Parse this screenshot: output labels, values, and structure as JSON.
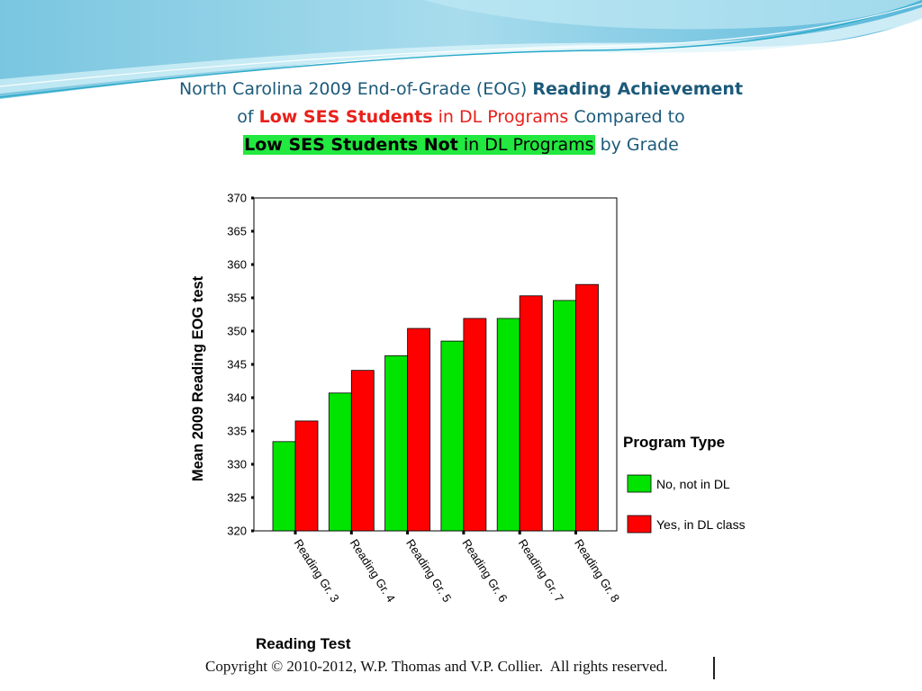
{
  "title": {
    "line1_a": "North Carolina 2009 End-of-Grade (EOG) ",
    "line1_b": "Reading Achievement",
    "line2_a": "of ",
    "line2_b": "Low SES Students",
    "line2_c": " in DL Programs",
    "line2_d": " Compared to",
    "line3_a": "Low SES Students ",
    "line3_b": "Not",
    "line3_c": " in DL Programs",
    "line3_d": " by Grade"
  },
  "chart_data": {
    "type": "bar",
    "categories": [
      "Reading Gr. 3",
      "Reading Gr. 4",
      "Reading Gr. 5",
      "Reading Gr. 6",
      "Reading Gr. 7",
      "Reading Gr. 8"
    ],
    "series": [
      {
        "name": "No, not in DL",
        "color": "#00e400",
        "values": [
          333.4,
          340.7,
          346.3,
          348.5,
          351.9,
          354.6
        ]
      },
      {
        "name": "Yes, in DL class",
        "color": "#ff0000",
        "values": [
          336.5,
          344.1,
          350.4,
          351.9,
          355.3,
          357.0
        ]
      }
    ],
    "xlabel": "Reading Test",
    "ylabel": "Mean 2009 Reading EOG test",
    "ylim": [
      320,
      370
    ],
    "yticks": [
      320,
      325,
      330,
      335,
      340,
      345,
      350,
      355,
      360,
      365,
      370
    ],
    "legend_title": "Program Type",
    "legend_position": "right"
  },
  "copyright": "Copyright © 2010-2012, W.P. Thomas and V.P. Collier.  All rights reserved."
}
